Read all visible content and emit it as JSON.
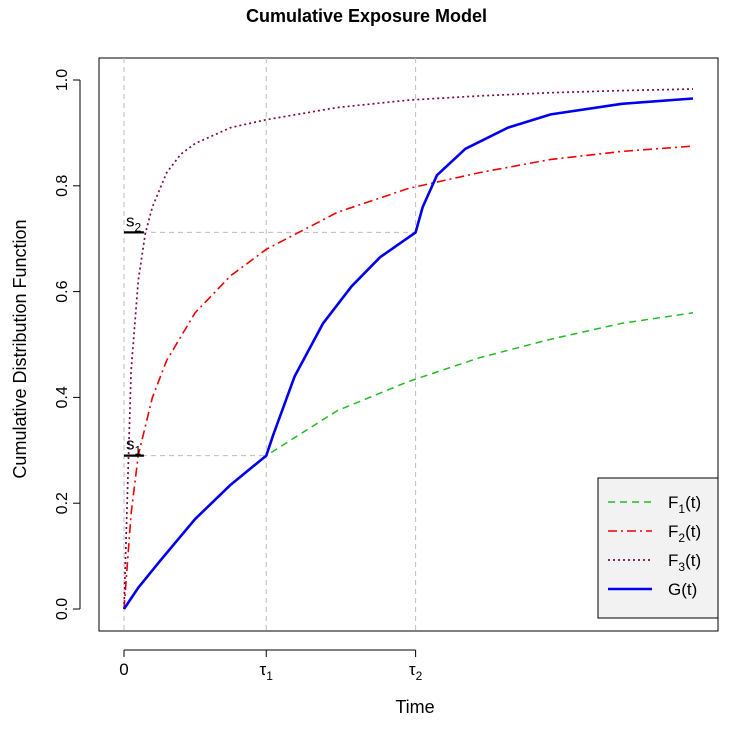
{
  "chart_data": {
    "type": "line",
    "title": "Cumulative Exposure Model",
    "xlabel": "Time",
    "ylabel": "Cumulative Distribution Function",
    "xlim": [
      0,
      4
    ],
    "ylim": [
      0,
      1
    ],
    "x_ticks": [
      {
        "value": 0,
        "label": "0"
      },
      {
        "value": 1,
        "label": "τ",
        "sub": "1"
      },
      {
        "value": 2.05,
        "label": "τ",
        "sub": "2"
      }
    ],
    "y_ticks": [
      {
        "value": 0.0,
        "label": "0.0"
      },
      {
        "value": 0.2,
        "label": "0.2"
      },
      {
        "value": 0.4,
        "label": "0.4"
      },
      {
        "value": 0.6,
        "label": "0.6"
      },
      {
        "value": 0.8,
        "label": "0.8"
      },
      {
        "value": 1.0,
        "label": "1.0"
      }
    ],
    "series": [
      {
        "name": "F1(t)",
        "legend_main": "F",
        "legend_sub": "1",
        "legend_tail": "(t)",
        "color": "#22bb22",
        "style": "dashed",
        "x": [
          0,
          0.1,
          0.25,
          0.5,
          0.75,
          1.0,
          1.5,
          2.0,
          2.5,
          3.0,
          3.5,
          4.0
        ],
        "y": [
          0,
          0.04,
          0.09,
          0.17,
          0.235,
          0.29,
          0.375,
          0.43,
          0.475,
          0.51,
          0.54,
          0.56
        ]
      },
      {
        "name": "F2(t)",
        "legend_main": "F",
        "legend_sub": "2",
        "legend_tail": "(t)",
        "color": "#ee0000",
        "style": "dashdot",
        "x": [
          0,
          0.05,
          0.1,
          0.2,
          0.3,
          0.5,
          0.75,
          1.0,
          1.5,
          2.0,
          2.5,
          3.0,
          3.5,
          4.0
        ],
        "y": [
          0,
          0.18,
          0.29,
          0.4,
          0.47,
          0.56,
          0.63,
          0.68,
          0.75,
          0.795,
          0.825,
          0.85,
          0.865,
          0.875
        ]
      },
      {
        "name": "F3(t)",
        "legend_main": "F",
        "legend_sub": "3",
        "legend_tail": "(t)",
        "color": "#7a0a4a",
        "style": "dotted",
        "x": [
          0,
          0.05,
          0.1,
          0.15,
          0.2,
          0.3,
          0.4,
          0.5,
          0.75,
          1.0,
          1.5,
          2.0,
          2.5,
          3.0,
          3.5,
          4.0
        ],
        "y": [
          0,
          0.45,
          0.62,
          0.71,
          0.76,
          0.825,
          0.86,
          0.88,
          0.91,
          0.925,
          0.948,
          0.962,
          0.97,
          0.976,
          0.98,
          0.983
        ]
      },
      {
        "name": "G(t)",
        "legend_main": "G",
        "legend_sub": "",
        "legend_tail": "(t)",
        "color": "#0000ee",
        "style": "solid",
        "x": [
          0,
          0.1,
          0.25,
          0.5,
          0.75,
          1.0,
          1.05,
          1.2,
          1.4,
          1.6,
          1.8,
          2.05,
          2.1,
          2.2,
          2.4,
          2.7,
          3.0,
          3.5,
          4.0
        ],
        "y": [
          0,
          0.04,
          0.09,
          0.17,
          0.235,
          0.29,
          0.33,
          0.44,
          0.54,
          0.61,
          0.665,
          0.712,
          0.76,
          0.82,
          0.87,
          0.91,
          0.935,
          0.955,
          0.965
        ]
      }
    ],
    "reference_lines": [
      {
        "axis": "x",
        "value": 0
      },
      {
        "axis": "x",
        "value": 1
      },
      {
        "axis": "x",
        "value": 2.05
      },
      {
        "axis": "h",
        "y": 0.29,
        "x_from": 0,
        "x_to": 1
      },
      {
        "axis": "h",
        "y": 0.712,
        "x_from": 0,
        "x_to": 2.05
      }
    ],
    "annotations": [
      {
        "main": "s",
        "sub": "1",
        "y": 0.29,
        "x_from": 0,
        "x_to": 0.14
      },
      {
        "main": "s",
        "sub": "2",
        "y": 0.712,
        "x_from": 0,
        "x_to": 0.14
      }
    ],
    "legend_position": "bottom-right",
    "grid": false
  }
}
